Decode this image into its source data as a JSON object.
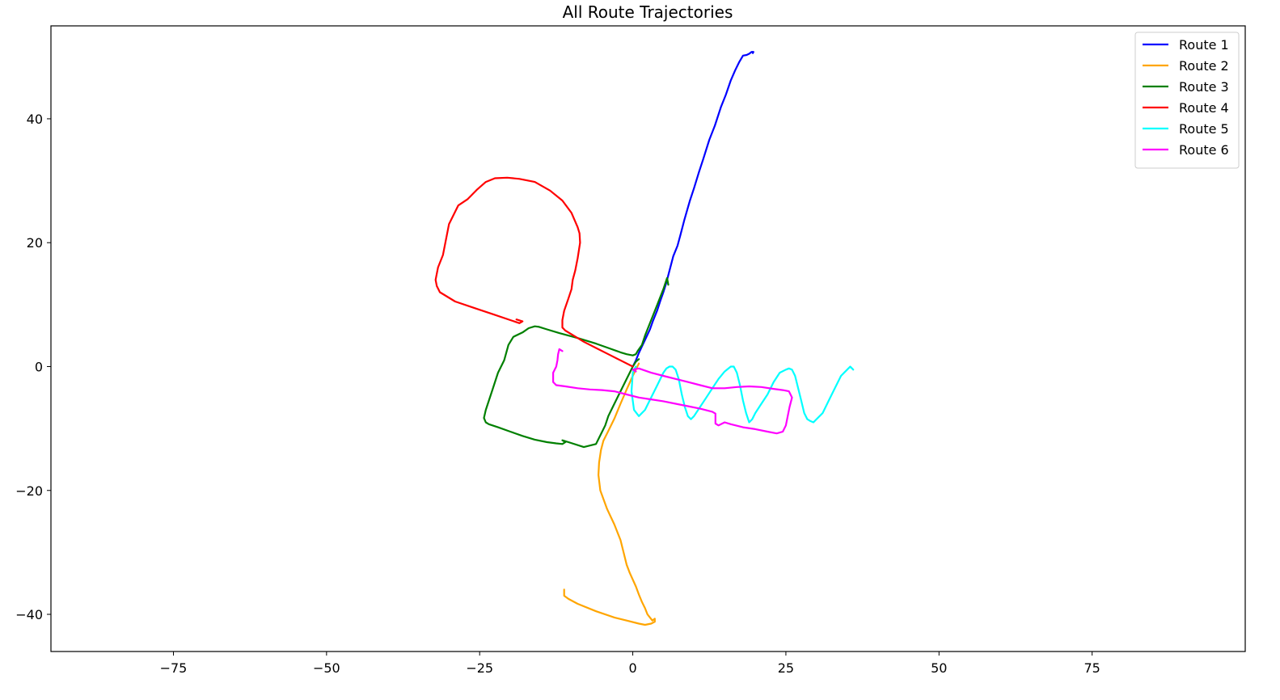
{
  "chart_data": {
    "type": "line",
    "title": "All Route Trajectories",
    "xlabel": "",
    "ylabel": "",
    "xlim": [
      -95,
      100
    ],
    "ylim": [
      -46,
      55
    ],
    "xticks": [
      -75,
      -50,
      -25,
      0,
      25,
      50,
      75
    ],
    "yticks": [
      -40,
      -20,
      0,
      20,
      40
    ],
    "grid": false,
    "legend_position": "top-right",
    "series": [
      {
        "name": "Route 1",
        "color": "#0000ff",
        "x": [
          0,
          0.5,
          1.0,
          2.0,
          2.8,
          3.3,
          4.0,
          4.5,
          5.0,
          5.5,
          6.0,
          6.6,
          7.3,
          7.8,
          8.4,
          9.3,
          10.0,
          10.8,
          11.5,
          12.5,
          13.4,
          14.4,
          15.2,
          16.0,
          16.7,
          17.4,
          18.0,
          18.6,
          19.0,
          19.4,
          19.7,
          19.6
        ],
        "y": [
          0.0,
          1.0,
          2.2,
          4.3,
          6.0,
          7.4,
          9.1,
          10.6,
          12.0,
          13.6,
          15.5,
          17.8,
          19.5,
          21.3,
          23.6,
          26.7,
          28.8,
          31.4,
          33.5,
          36.6,
          38.9,
          41.9,
          43.9,
          46.2,
          47.8,
          49.2,
          50.2,
          50.3,
          50.5,
          50.8,
          50.8,
          50.6
        ]
      },
      {
        "name": "Route 2",
        "color": "#ffa500",
        "x": [
          1.0,
          0.0,
          -1.0,
          -2.0,
          -3.0,
          -4.0,
          -4.8,
          -5.2,
          -5.5,
          -5.6,
          -5.3,
          -4.2,
          -3.0,
          -2.0,
          -1.5,
          -1.0,
          -0.5,
          0.5,
          1.0,
          1.5,
          2.0,
          2.4,
          2.8,
          3.2,
          3.6,
          3.6,
          3.0,
          2.0,
          1.0,
          -1.0,
          -3.0,
          -6.0,
          -9.0,
          -10.5,
          -11.2,
          -11.2
        ],
        "y": [
          0.5,
          -1.5,
          -3.7,
          -6.0,
          -8.4,
          -10.4,
          -12.0,
          -13.5,
          -15.5,
          -17.5,
          -20.0,
          -23.0,
          -25.5,
          -28.0,
          -30.0,
          -32.0,
          -33.3,
          -35.5,
          -36.8,
          -38.0,
          -39.0,
          -40.0,
          -40.5,
          -41.0,
          -40.7,
          -41.2,
          -41.5,
          -41.7,
          -41.5,
          -41.0,
          -40.5,
          -39.5,
          -38.3,
          -37.5,
          -37.0,
          -36.0
        ]
      },
      {
        "name": "Route 3",
        "color": "#008000",
        "x": [
          5.8,
          5.6,
          5.0,
          4.0,
          3.0,
          2.0,
          1.5,
          0.8,
          0.5,
          0.0,
          -1.0,
          -2.0,
          -4.0,
          -6.0,
          -9.0,
          -12.0,
          -14.0,
          -15.3,
          -16.0,
          -17.0,
          -18.0,
          -19.5,
          -20.3,
          -21.0,
          -22.0,
          -23.0,
          -24.0,
          -24.3,
          -24.0,
          -23.5,
          -22.0,
          -20.0,
          -18.0,
          -16.0,
          -14.0,
          -12.5,
          -11.5,
          -11.0,
          -11.5,
          -10.5,
          -8.0,
          -6.0,
          -5.5,
          -5.0,
          -4.5,
          -4.0,
          -3.0,
          -2.0,
          -1.0,
          0.0,
          0.5,
          1.0
        ],
        "y": [
          13.2,
          14.3,
          12.5,
          10.0,
          7.5,
          5.0,
          3.5,
          2.5,
          2.0,
          1.8,
          2.0,
          2.3,
          3.0,
          3.7,
          4.6,
          5.4,
          6.0,
          6.4,
          6.5,
          6.2,
          5.5,
          4.8,
          3.5,
          1.0,
          -1.0,
          -4.0,
          -7.0,
          -8.3,
          -9.0,
          -9.3,
          -9.8,
          -10.5,
          -11.2,
          -11.8,
          -12.2,
          -12.4,
          -12.5,
          -12.2,
          -11.9,
          -12.2,
          -13.0,
          -12.5,
          -11.5,
          -10.5,
          -9.5,
          -8.0,
          -6.0,
          -4.0,
          -2.0,
          0.0,
          0.8,
          1.2
        ]
      },
      {
        "name": "Route 4",
        "color": "#ff0000",
        "x": [
          0.0,
          -2.0,
          -4.0,
          -6.0,
          -8.0,
          -10.0,
          -11.0,
          -11.5,
          -11.5,
          -11.2,
          -10.5,
          -10.0,
          -9.8,
          -9.4,
          -9.0,
          -8.6,
          -8.7,
          -9.0,
          -10.0,
          -11.5,
          -13.5,
          -16.0,
          -18.5,
          -20.5,
          -22.5,
          -24.0,
          -25.5,
          -27.0,
          -28.5,
          -30.0,
          -31.0,
          -31.8,
          -32.2,
          -32.0,
          -31.5,
          -29.0,
          -26.0,
          -23.0,
          -20.0,
          -18.5,
          -18.0,
          -19.0
        ],
        "y": [
          0.0,
          1.0,
          2.0,
          3.0,
          4.0,
          5.2,
          5.8,
          6.3,
          7.5,
          9.0,
          11.0,
          12.5,
          14.0,
          15.5,
          17.5,
          20.0,
          21.5,
          22.5,
          24.8,
          26.8,
          28.4,
          29.8,
          30.3,
          30.5,
          30.4,
          29.8,
          28.5,
          27.0,
          26.0,
          23.0,
          18.0,
          16.0,
          14.0,
          13.0,
          12.0,
          10.5,
          9.5,
          8.5,
          7.5,
          7.0,
          7.3,
          7.6
        ]
      },
      {
        "name": "Route 5",
        "color": "#00ffff",
        "x": [
          0.5,
          0.2,
          0.0,
          -0.2,
          0.2,
          1.0,
          2.0,
          3.0,
          4.0,
          5.0,
          5.5,
          6.0,
          6.5,
          7.0,
          7.5,
          8.0,
          8.5,
          9.0,
          9.5,
          10.0,
          11.0,
          12.0,
          13.0,
          14.0,
          15.0,
          16.0,
          16.5,
          17.0,
          17.5,
          18.0,
          18.5,
          19.0,
          19.5,
          20.0,
          21.0,
          22.0,
          23.0,
          24.0,
          25.0,
          25.5,
          26.0,
          26.5,
          27.0,
          27.5,
          28.0,
          28.5,
          29.0,
          29.5,
          30.0,
          31.0,
          32.0,
          33.0,
          34.0,
          35.0,
          35.5,
          36.0
        ],
        "y": [
          0.0,
          -0.5,
          -1.0,
          -4.0,
          -7.0,
          -8.0,
          -7.0,
          -5.0,
          -3.0,
          -1.0,
          -0.3,
          0.0,
          0.0,
          -0.5,
          -2.0,
          -4.5,
          -6.5,
          -8.0,
          -8.5,
          -8.0,
          -6.5,
          -5.0,
          -3.5,
          -2.0,
          -0.8,
          0.0,
          0.0,
          -1.0,
          -3.0,
          -5.5,
          -7.5,
          -9.0,
          -8.5,
          -7.5,
          -6.0,
          -4.5,
          -2.5,
          -1.0,
          -0.5,
          -0.3,
          -0.5,
          -1.5,
          -3.5,
          -5.5,
          -7.5,
          -8.5,
          -8.8,
          -9.0,
          -8.5,
          -7.5,
          -5.5,
          -3.5,
          -1.5,
          -0.5,
          0.0,
          -0.5
        ]
      },
      {
        "name": "Route 6",
        "color": "#ff00ff",
        "x": [
          -11.5,
          -12.0,
          -12.2,
          -12.3,
          -12.5,
          -13.0,
          -13.0,
          -12.5,
          -11.0,
          -9.0,
          -7.0,
          -5.0,
          -3.0,
          -1.0,
          1.0,
          3.0,
          5.0,
          7.0,
          9.0,
          11.0,
          13.0,
          13.5,
          13.5,
          14.0,
          15.0,
          16.0,
          18.0,
          20.0,
          22.0,
          23.5,
          24.5,
          25.0,
          25.3,
          25.6,
          26.0,
          25.5,
          24.5,
          23.0,
          21.0,
          19.0,
          17.0,
          15.0,
          13.0,
          11.0,
          9.0,
          7.0,
          5.0,
          3.0,
          1.0,
          0.0,
          0.5
        ],
        "y": [
          2.5,
          2.8,
          2.0,
          1.0,
          0.0,
          -1.0,
          -2.5,
          -3.0,
          -3.2,
          -3.5,
          -3.7,
          -3.8,
          -4.0,
          -4.5,
          -5.0,
          -5.3,
          -5.6,
          -6.0,
          -6.4,
          -6.8,
          -7.3,
          -7.6,
          -9.2,
          -9.5,
          -9.0,
          -9.3,
          -9.8,
          -10.1,
          -10.5,
          -10.8,
          -10.5,
          -9.5,
          -8.0,
          -6.5,
          -5.0,
          -4.0,
          -3.8,
          -3.6,
          -3.3,
          -3.2,
          -3.3,
          -3.5,
          -3.5,
          -3.0,
          -2.5,
          -2.0,
          -1.5,
          -1.0,
          -0.3,
          -0.5,
          -0.8
        ]
      }
    ]
  }
}
